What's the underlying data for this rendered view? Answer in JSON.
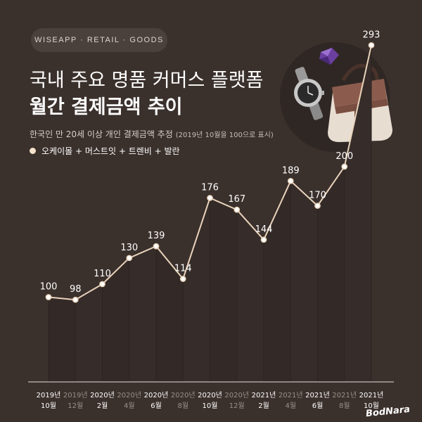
{
  "header": {
    "brand": "WISEAPP · RETAIL · GOODS",
    "title_line1": "국내 주요 명품 커머스 플랫폼",
    "title_line2": "월간 결제금액 추이",
    "subtitle": "한국인 만 20세 이상 개인 결제금액 추정",
    "subtitle_note": "(2019년 10월을 100으로 표시)"
  },
  "legend": {
    "label": "오케이몰 + 머스트잇 + 트렌비 + 발란",
    "color": "#f6e3cc"
  },
  "colors": {
    "background": "#3a302c",
    "line": "#e9d3bb",
    "marker_fill": "#ffffff",
    "label_text": "#ffffff",
    "tick_text_primary": "#ffffff",
    "tick_text_secondary": "#9a8f88"
  },
  "chart_data": {
    "type": "line",
    "title": "월간 결제금액 추이",
    "categories": [
      [
        "2019년",
        "10월"
      ],
      [
        "2019년",
        "12월"
      ],
      [
        "2020년",
        "2월"
      ],
      [
        "2020년",
        "4월"
      ],
      [
        "2020년",
        "6월"
      ],
      [
        "2020년",
        "8월"
      ],
      [
        "2020년",
        "10월"
      ],
      [
        "2020년",
        "12월"
      ],
      [
        "2021년",
        "2월"
      ],
      [
        "2021년",
        "4월"
      ],
      [
        "2021년",
        "6월"
      ],
      [
        "2021년",
        "8월"
      ],
      [
        "2021년",
        "10월"
      ]
    ],
    "tick_emphasis": [
      true,
      false,
      true,
      false,
      true,
      false,
      true,
      false,
      true,
      false,
      true,
      false,
      true
    ],
    "series": [
      {
        "name": "오케이몰 + 머스트잇 + 트렌비 + 발란",
        "values": [
          100,
          98,
          110,
          130,
          139,
          114,
          176,
          167,
          144,
          189,
          170,
          200,
          293
        ]
      }
    ],
    "ylim": [
      0,
      300
    ],
    "grid": false,
    "legend_position": "top-left"
  },
  "watermark": "BodNara",
  "illustration": {
    "icons": [
      "gem-icon",
      "wristwatch-icon",
      "handbag-icon"
    ]
  }
}
